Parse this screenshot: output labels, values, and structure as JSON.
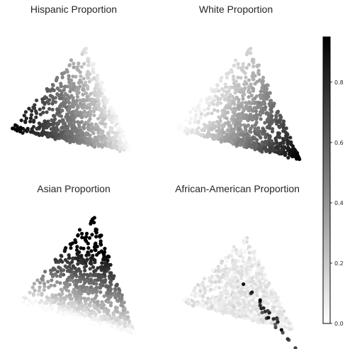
{
  "chart_data": {
    "type": "scatter",
    "colormap": "Greys",
    "point_color_low": "#ffffff",
    "point_color_high": "#000000",
    "colorbar": {
      "range": [
        0.0,
        0.95
      ],
      "ticks": [
        "0.0",
        "0.2",
        "0.4",
        "0.6",
        "0.8"
      ],
      "tick_values": [
        0.0,
        0.2,
        0.4,
        0.6,
        0.8
      ]
    },
    "panels": [
      {
        "title": "Hispanic Proportion"
      },
      {
        "title": "White Proportion"
      },
      {
        "title": "Asian Proportion"
      },
      {
        "title": "African-American Proportion"
      }
    ],
    "shared_embedding_shape": "triangular point cloud with left, upper and right vertices",
    "approximate_vertex_values": {
      "hispanic": {
        "left": 0.9,
        "upper": 0.15,
        "right": 0.1
      },
      "white": {
        "left": 0.05,
        "upper": 0.15,
        "right": 0.9
      },
      "asian": {
        "left": 0.02,
        "upper": 0.9,
        "right": 0.05
      },
      "african_american": {
        "left": 0.05,
        "upper": 0.1,
        "right": 0.05,
        "hotspot": 0.95
      }
    },
    "grid": false,
    "axes_visible": false
  }
}
